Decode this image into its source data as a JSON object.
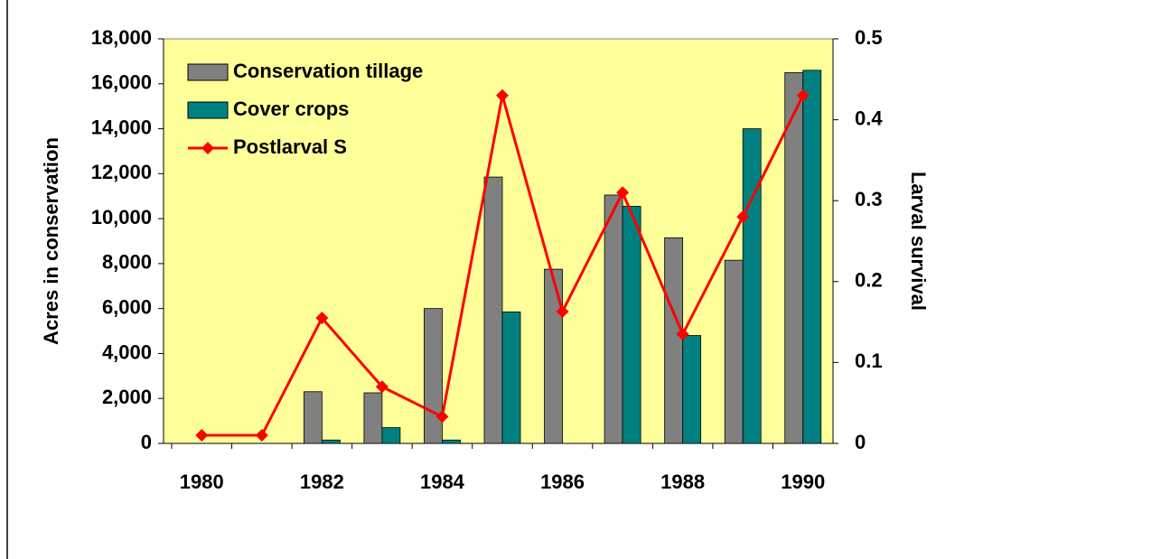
{
  "chart_data": {
    "type": "bar-line",
    "categories": [
      "1980",
      null,
      "1982",
      null,
      "1984",
      null,
      "1986",
      null,
      "1988",
      null,
      "1990"
    ],
    "series": [
      {
        "name": "Conservation tillage",
        "color": "#808080",
        "type": "bar",
        "values": [
          0,
          0,
          2300,
          2250,
          6000,
          11850,
          7750,
          11050,
          9150,
          8150,
          16500
        ]
      },
      {
        "name": "Cover crops",
        "color": "#008080",
        "type": "bar",
        "values": [
          0,
          0,
          150,
          700,
          150,
          5850,
          0,
          10550,
          4800,
          14000,
          16600
        ]
      },
      {
        "name": "Postlarval S",
        "color": "#ff0000",
        "type": "line",
        "axis": "y2",
        "values": [
          0.01,
          0.01,
          0.155,
          0.07,
          0.033,
          0.43,
          0.163,
          0.31,
          0.135,
          0.28,
          0.43
        ]
      }
    ],
    "ylabel": "Acres in conservation",
    "y2label": "Larval survival",
    "ylim": [
      0,
      18000
    ],
    "yticks": [
      0,
      {
        "value": 2000,
        "label": "2,000"
      },
      {
        "value": 4000,
        "label": "4,000"
      },
      {
        "value": 6000,
        "label": "6,000"
      },
      {
        "value": 8000,
        "label": "8,000"
      },
      {
        "value": 10000,
        "label": "10,000"
      },
      {
        "value": 12000,
        "label": "12,000"
      },
      {
        "value": 14000,
        "label": "14,000"
      },
      {
        "value": 16000,
        "label": "16,000"
      },
      {
        "value": 18000,
        "label": "18,000"
      }
    ],
    "y2lim": [
      0,
      0.5
    ],
    "y2ticks": [
      0,
      0.1,
      0.2,
      0.3,
      0.4,
      0.5
    ],
    "legend": "upper left",
    "background": "#ffff99"
  }
}
